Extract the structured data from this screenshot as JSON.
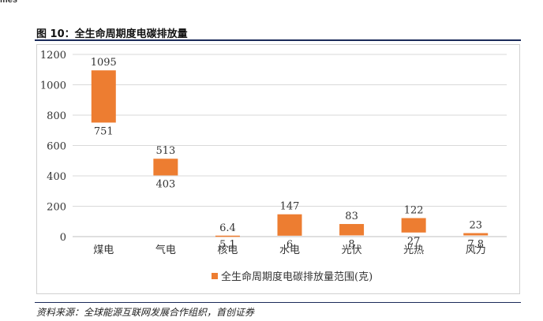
{
  "header_fragment": "ifies",
  "figure_title": "图 10：全生命周期度电碳排放量",
  "source_note": "资料来源：全球能源互联网发展合作组织，首创证券",
  "colors": {
    "bar": "#ED7D31",
    "grid": "#d9d9d9",
    "frame": "#d0d0d0",
    "rule": "#1a2a5a"
  },
  "chart_data": {
    "type": "bar",
    "subtype": "floating-range",
    "categories": [
      "煤电",
      "气电",
      "核电",
      "水电",
      "光伏",
      "光热",
      "风力"
    ],
    "series": [
      {
        "name": "全生命周期度电碳排放量范围(克)",
        "low": [
          751,
          403,
          5.1,
          6,
          8,
          27,
          7.8
        ],
        "high": [
          1095,
          513,
          6.4,
          147,
          83,
          122,
          23
        ],
        "low_labels": [
          "751",
          "403",
          "5.1",
          "6",
          "8",
          "27",
          "7.8"
        ],
        "high_labels": [
          "1095",
          "513",
          "6.4",
          "147",
          "83",
          "122",
          "23"
        ]
      }
    ],
    "ylim": [
      0,
      1200
    ],
    "yticks": [
      "0",
      "200",
      "400",
      "600",
      "800",
      "1000",
      "1200"
    ],
    "grid": true,
    "legend_position": "bottom"
  }
}
